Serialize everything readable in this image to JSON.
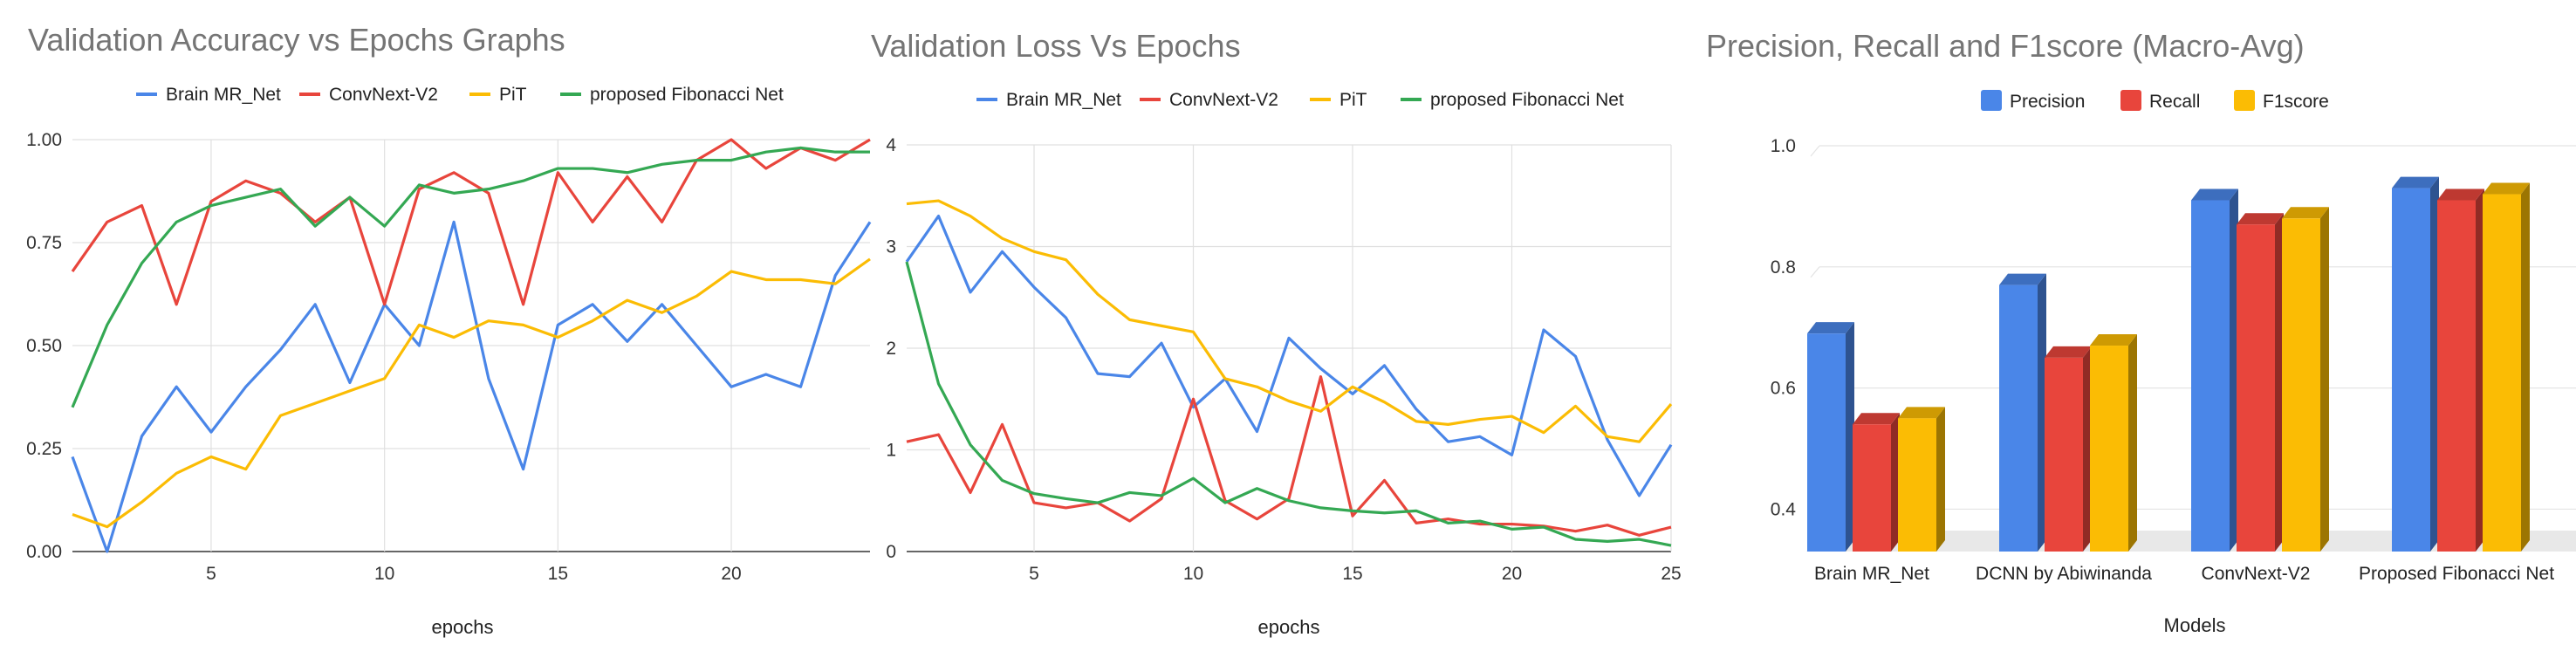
{
  "chart_data": [
    {
      "type": "line",
      "title": "Validation Accuracy vs Epochs Graphs",
      "xlabel": "epochs",
      "ylabel": "",
      "xlim": [
        1,
        24
      ],
      "ylim": [
        0,
        1
      ],
      "x_ticks": [
        "5",
        "10",
        "15",
        "20"
      ],
      "y_ticks": [
        "0.00",
        "0.25",
        "0.50",
        "0.75",
        "1.00"
      ],
      "x": [
        1,
        2,
        3,
        4,
        5,
        6,
        7,
        8,
        9,
        10,
        11,
        12,
        13,
        14,
        15,
        16,
        17,
        18,
        19,
        20,
        21,
        22,
        23,
        24
      ],
      "series": [
        {
          "name": "Brain MR_Net",
          "color": "#4a86e8",
          "values": [
            0.23,
            0.0,
            0.28,
            0.4,
            0.29,
            0.4,
            0.49,
            0.6,
            0.41,
            0.6,
            0.5,
            0.8,
            0.42,
            0.2,
            0.55,
            0.6,
            0.51,
            0.6,
            0.5,
            0.4,
            0.43,
            0.4,
            0.67,
            0.8
          ]
        },
        {
          "name": "ConvNext-V2",
          "color": "#e8453c",
          "values": [
            0.68,
            0.8,
            0.84,
            0.6,
            0.85,
            0.9,
            0.87,
            0.8,
            0.86,
            0.6,
            0.88,
            0.92,
            0.87,
            0.6,
            0.92,
            0.8,
            0.91,
            0.8,
            0.95,
            1.0,
            0.93,
            0.98,
            0.95,
            1.0
          ]
        },
        {
          "name": "PiT",
          "color": "#fbbc04",
          "values": [
            0.09,
            0.06,
            0.12,
            0.19,
            0.23,
            0.2,
            0.33,
            0.36,
            0.39,
            0.42,
            0.55,
            0.52,
            0.56,
            0.55,
            0.52,
            0.56,
            0.61,
            0.58,
            0.62,
            0.68,
            0.66,
            0.66,
            0.65,
            0.71
          ]
        },
        {
          "name": "proposed Fibonacci Net",
          "color": "#34a853",
          "values": [
            0.35,
            0.55,
            0.7,
            0.8,
            0.84,
            0.86,
            0.88,
            0.79,
            0.86,
            0.79,
            0.89,
            0.87,
            0.88,
            0.9,
            0.93,
            0.93,
            0.92,
            0.94,
            0.95,
            0.95,
            0.97,
            0.98,
            0.97,
            0.97
          ]
        }
      ],
      "legend": "top"
    },
    {
      "type": "line",
      "title": "Validation Loss Vs Epochs",
      "xlabel": "epochs",
      "ylabel": "",
      "xlim": [
        1,
        25
      ],
      "ylim": [
        0,
        4
      ],
      "x_ticks": [
        "5",
        "10",
        "15",
        "20",
        "25"
      ],
      "y_ticks": [
        "0",
        "1",
        "2",
        "3",
        "4"
      ],
      "x": [
        1,
        2,
        3,
        4,
        5,
        6,
        7,
        8,
        9,
        10,
        11,
        12,
        13,
        14,
        15,
        16,
        17,
        18,
        19,
        20,
        21,
        22,
        23,
        24,
        25
      ],
      "series": [
        {
          "name": "Brain MR_Net",
          "color": "#4a86e8",
          "values": [
            2.85,
            3.3,
            2.55,
            2.95,
            2.6,
            2.3,
            1.75,
            1.72,
            2.05,
            1.42,
            1.7,
            1.18,
            2.1,
            1.8,
            1.55,
            1.83,
            1.4,
            1.08,
            1.13,
            0.95,
            2.18,
            1.92,
            1.1,
            0.55,
            1.05
          ]
        },
        {
          "name": "ConvNext-V2",
          "color": "#e8453c",
          "values": [
            1.08,
            1.15,
            0.58,
            1.25,
            0.48,
            0.43,
            0.48,
            0.3,
            0.52,
            1.5,
            0.5,
            0.32,
            0.52,
            1.72,
            0.35,
            0.7,
            0.28,
            0.32,
            0.27,
            0.27,
            0.25,
            0.2,
            0.26,
            0.16,
            0.24
          ]
        },
        {
          "name": "PiT",
          "color": "#fbbc04",
          "values": [
            3.42,
            3.45,
            3.3,
            3.08,
            2.95,
            2.87,
            2.53,
            2.28,
            2.22,
            2.16,
            1.7,
            1.62,
            1.48,
            1.38,
            1.62,
            1.47,
            1.28,
            1.25,
            1.3,
            1.33,
            1.17,
            1.43,
            1.13,
            1.08,
            1.45
          ]
        },
        {
          "name": "proposed Fibonacci Net",
          "color": "#34a853",
          "values": [
            2.85,
            1.65,
            1.05,
            0.7,
            0.57,
            0.52,
            0.48,
            0.58,
            0.55,
            0.72,
            0.48,
            0.62,
            0.5,
            0.43,
            0.4,
            0.38,
            0.4,
            0.28,
            0.3,
            0.22,
            0.24,
            0.12,
            0.1,
            0.12,
            0.06
          ]
        }
      ],
      "legend": "top"
    },
    {
      "type": "bar",
      "title": "Precision, Recall and F1score (Macro-Avg)",
      "xlabel": "Models",
      "ylabel": "",
      "ylim": [
        0.33,
        1.0
      ],
      "y_ticks": [
        "0.4",
        "0.6",
        "0.8",
        "1.0"
      ],
      "categories": [
        "Brain MR_Net",
        "DCNN by Abiwinanda",
        "ConvNext-V2",
        "Proposed Fibonacci Net"
      ],
      "series": [
        {
          "name": "Precision",
          "color": "#4a86e8",
          "values": [
            0.69,
            0.77,
            0.91,
            0.93
          ]
        },
        {
          "name": "Recall",
          "color": "#e8453c",
          "values": [
            0.54,
            0.65,
            0.87,
            0.91
          ]
        },
        {
          "name": "F1score",
          "color": "#fbbc04",
          "values": [
            0.55,
            0.67,
            0.88,
            0.92
          ]
        }
      ],
      "legend": "top"
    }
  ]
}
